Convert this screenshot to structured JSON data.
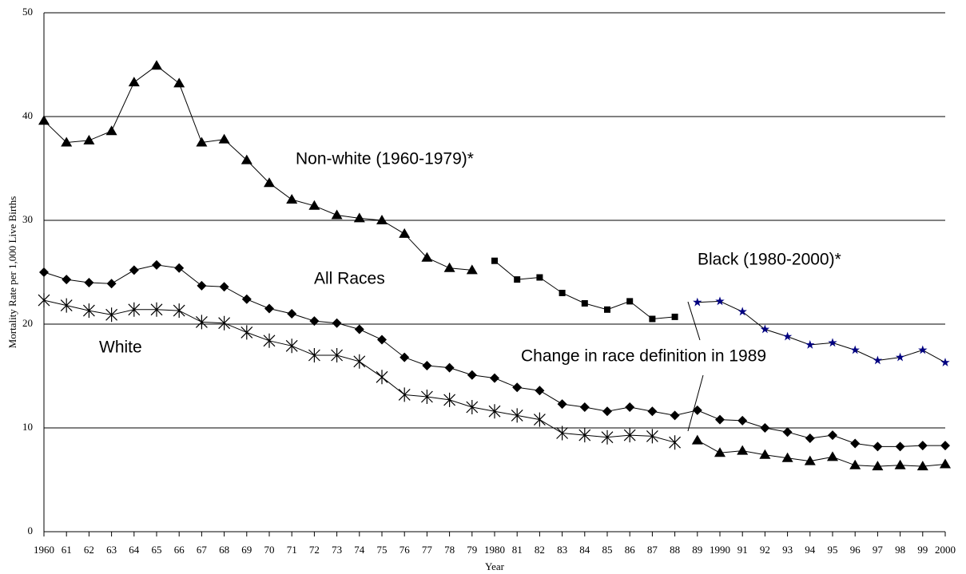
{
  "chart_data": {
    "type": "line",
    "annotations": [
      "Change in race definition in 1989"
    ],
    "x_label": "Year",
    "y_label": "Mortality Rate per 1,000 Live Births",
    "categories": [
      "1960",
      "61",
      "62",
      "63",
      "64",
      "65",
      "66",
      "67",
      "68",
      "69",
      "70",
      "71",
      "72",
      "73",
      "74",
      "75",
      "76",
      "77",
      "78",
      "79",
      "1980",
      "81",
      "82",
      "83",
      "84",
      "85",
      "86",
      "87",
      "88",
      "89",
      "1990",
      "91",
      "92",
      "93",
      "94",
      "95",
      "96",
      "97",
      "98",
      "99",
      "2000"
    ],
    "ylim": [
      0,
      50
    ],
    "yticks": [
      0,
      10,
      20,
      30,
      40,
      50
    ],
    "grid": true,
    "series": [
      {
        "name": "Non-white (1960-1979)*",
        "color": "#000000",
        "marker": "triangle",
        "values": [
          39.6,
          37.5,
          37.7,
          38.6,
          43.3,
          44.9,
          43.2,
          37.5,
          37.8,
          35.8,
          33.6,
          32.0,
          31.4,
          30.5,
          30.2,
          30.0,
          28.7,
          26.4,
          25.4,
          25.2,
          null,
          null,
          null,
          null,
          null,
          null,
          null,
          null,
          null,
          null,
          null,
          null,
          null,
          null,
          null,
          null,
          null,
          null,
          null,
          null,
          null
        ]
      },
      {
        "color": "#000000",
        "marker": "square",
        "values": [
          null,
          null,
          null,
          null,
          null,
          null,
          null,
          null,
          null,
          null,
          null,
          null,
          null,
          null,
          null,
          null,
          null,
          null,
          null,
          null,
          26.1,
          24.3,
          24.5,
          23.0,
          22.0,
          21.4,
          22.2,
          20.5,
          20.7,
          null,
          null,
          null,
          null,
          null,
          null,
          null,
          null,
          null,
          null,
          null,
          null
        ]
      },
      {
        "name": "Black (1980-2000)*",
        "color": "#000080",
        "marker": "star",
        "values": [
          null,
          null,
          null,
          null,
          null,
          null,
          null,
          null,
          null,
          null,
          null,
          null,
          null,
          null,
          null,
          null,
          null,
          null,
          null,
          null,
          null,
          null,
          null,
          null,
          null,
          null,
          null,
          null,
          null,
          22.1,
          22.2,
          21.2,
          19.5,
          18.8,
          18.0,
          18.2,
          17.5,
          16.5,
          16.8,
          17.5,
          16.3
        ]
      },
      {
        "name": "All Races",
        "color": "#000000",
        "marker": "diamond",
        "values": [
          25.0,
          24.3,
          24.0,
          23.9,
          25.2,
          25.7,
          25.4,
          23.7,
          23.6,
          22.4,
          21.5,
          21.0,
          20.3,
          20.1,
          19.5,
          18.5,
          16.8,
          16.0,
          15.8,
          15.1,
          14.8,
          13.9,
          13.6,
          12.3,
          12.0,
          11.6,
          12.0,
          11.6,
          11.2,
          11.7,
          10.8,
          10.7,
          10.0,
          9.6,
          9.0,
          9.3,
          8.5,
          8.2,
          8.2,
          8.3,
          8.3
        ]
      },
      {
        "name": "White",
        "color": "#000000",
        "marker": "x",
        "values": [
          22.3,
          21.8,
          21.3,
          20.9,
          21.4,
          21.4,
          21.3,
          20.2,
          20.1,
          19.2,
          18.4,
          17.9,
          17.0,
          17.0,
          16.4,
          14.9,
          13.2,
          13.0,
          12.7,
          12.0,
          11.6,
          11.2,
          10.8,
          9.5,
          9.3,
          9.1,
          9.3,
          9.2,
          8.6,
          null,
          null,
          null,
          null,
          null,
          null,
          null,
          null,
          null,
          null,
          null,
          null
        ]
      },
      {
        "color": "#000000",
        "marker": "triangle",
        "values": [
          null,
          null,
          null,
          null,
          null,
          null,
          null,
          null,
          null,
          null,
          null,
          null,
          null,
          null,
          null,
          null,
          null,
          null,
          null,
          null,
          null,
          null,
          null,
          null,
          null,
          null,
          null,
          null,
          null,
          8.8,
          7.6,
          7.8,
          7.4,
          7.1,
          6.8,
          7.2,
          6.4,
          6.3,
          6.4,
          6.3,
          6.5
        ]
      }
    ]
  }
}
